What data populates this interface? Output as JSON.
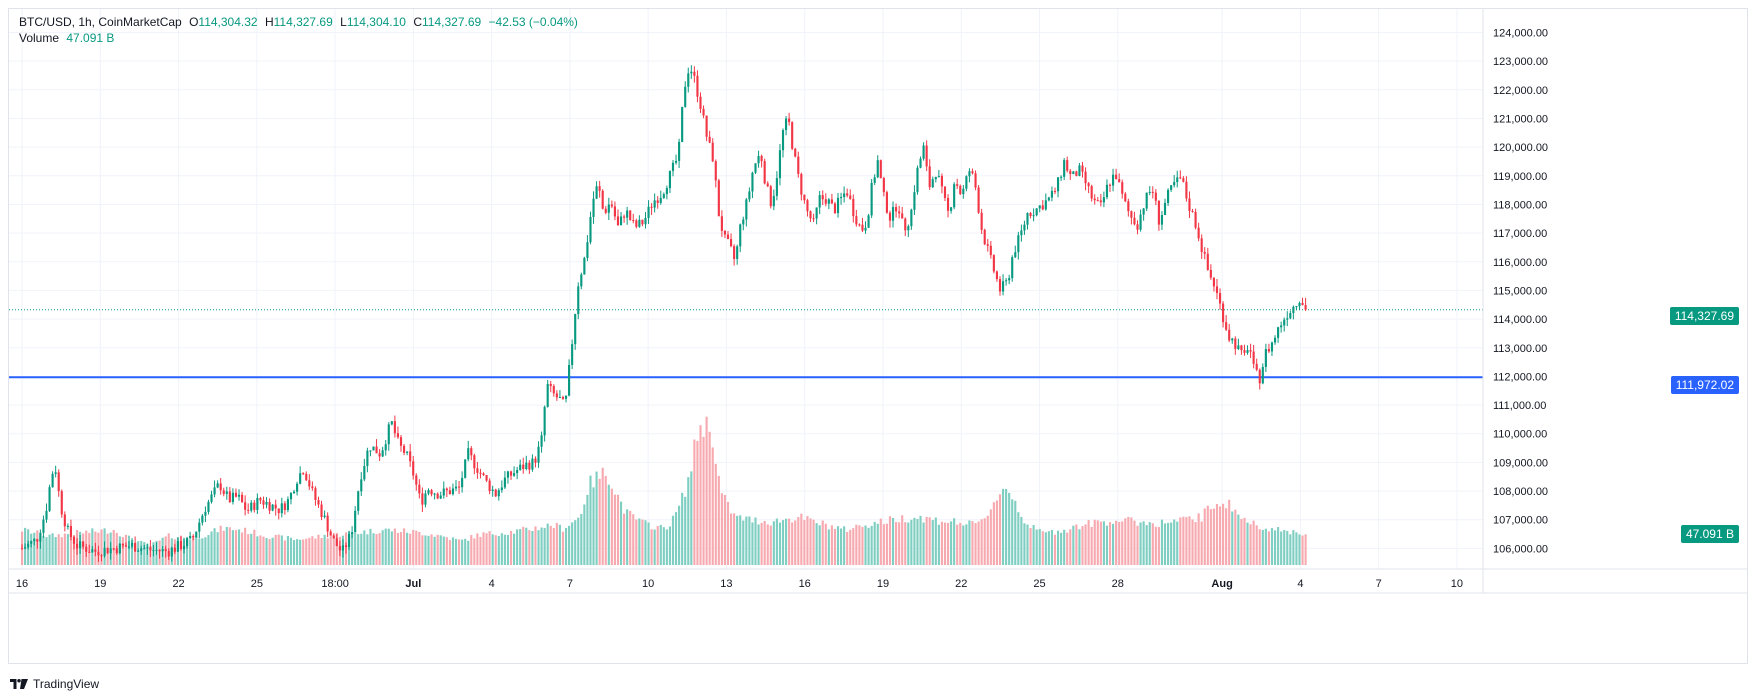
{
  "legend": {
    "symbol": "BTC/USD, 1h, CoinMarketCap",
    "open_label": "O",
    "open": "114,304.32",
    "high_label": "H",
    "high": "114,327.69",
    "low_label": "L",
    "low": "114,304.10",
    "close_label": "C",
    "close": "114,327.69",
    "change": "−42.53 (−0.04%)",
    "volume_label": "Volume",
    "volume_value": "47.091 B"
  },
  "price_tag": "114,327.69",
  "level_tag": "111,972.02",
  "volume_tag": "47.091 B",
  "branding": "TradingView",
  "colors": {
    "up": "#089981",
    "down": "#f23645",
    "up_volume": "#7fcec2",
    "down_volume": "#f7a9b0",
    "level_line": "#2962ff",
    "grid": "#f0f3fa",
    "axis_text": "#131722"
  },
  "chart_data": {
    "type": "candlestick",
    "symbol": "BTC/USD",
    "interval": "1h",
    "source": "CoinMarketCap",
    "y_axis": {
      "ticks": [
        "106,000.00",
        "107,000.00",
        "108,000.00",
        "109,000.00",
        "110,000.00",
        "111,000.00",
        "112,000.00",
        "113,000.00",
        "114,000.00",
        "115,000.00",
        "116,000.00",
        "117,000.00",
        "118,000.00",
        "119,000.00",
        "120,000.00",
        "121,000.00",
        "122,000.00",
        "123,000.00",
        "124,000.00"
      ],
      "min": 105700,
      "max": 124400
    },
    "x_axis": {
      "ticks": [
        "16",
        "19",
        "22",
        "25",
        "18:00",
        "Jul",
        "4",
        "7",
        "10",
        "13",
        "16",
        "19",
        "22",
        "25",
        "28",
        "Aug",
        "4",
        "7",
        "10"
      ],
      "bold_ticks": [
        "Jul",
        "Aug"
      ],
      "days_from_jun16": [
        0,
        3,
        6,
        9,
        12,
        15,
        18,
        21,
        24,
        27,
        30,
        33,
        36,
        39,
        42,
        46,
        49,
        52,
        55
      ],
      "range_days": [
        -0.5,
        56.0
      ]
    },
    "horizontal_level": 111972.02,
    "last_price": 114327.69,
    "price_path": [
      [
        0.0,
        106000
      ],
      [
        0.8,
        106300
      ],
      [
        1.3,
        107300
      ],
      [
        1.6,
        108500
      ],
      [
        1.8,
        108950
      ],
      [
        2.1,
        107500
      ],
      [
        2.5,
        106600
      ],
      [
        3.0,
        106100
      ],
      [
        4.0,
        105900
      ],
      [
        5.0,
        106000
      ],
      [
        6.0,
        106100
      ],
      [
        7.0,
        105950
      ],
      [
        8.0,
        105900
      ],
      [
        9.3,
        106300
      ],
      [
        10.0,
        107400
      ],
      [
        10.8,
        108250
      ],
      [
        11.3,
        107700
      ],
      [
        11.8,
        107800
      ],
      [
        12.3,
        107300
      ],
      [
        13.0,
        107700
      ],
      [
        14.1,
        107350
      ],
      [
        14.6,
        107700
      ],
      [
        15.0,
        108400
      ],
      [
        15.4,
        108800
      ],
      [
        15.9,
        107900
      ],
      [
        16.5,
        107100
      ],
      [
        17.0,
        106300
      ],
      [
        17.5,
        105850
      ],
      [
        18.0,
        106500
      ],
      [
        18.5,
        108500
      ],
      [
        19.0,
        109600
      ],
      [
        19.6,
        109300
      ],
      [
        20.2,
        110400
      ],
      [
        20.6,
        109600
      ],
      [
        21.0,
        109300
      ],
      [
        21.4,
        108600
      ],
      [
        21.8,
        107600
      ],
      [
        22.2,
        108100
      ],
      [
        22.8,
        107900
      ],
      [
        23.4,
        108000
      ],
      [
        23.9,
        108100
      ],
      [
        24.4,
        109300
      ],
      [
        24.9,
        108800
      ],
      [
        25.4,
        108300
      ],
      [
        25.9,
        107900
      ],
      [
        26.4,
        108400
      ],
      [
        27.0,
        108700
      ],
      [
        27.5,
        108900
      ],
      [
        28.0,
        109000
      ],
      [
        28.4,
        109700
      ],
      [
        28.7,
        111700
      ],
      [
        29.0,
        111400
      ],
      [
        29.4,
        111200
      ],
      [
        29.7,
        110900
      ],
      [
        30.1,
        113300
      ],
      [
        30.4,
        115200
      ],
      [
        30.8,
        116200
      ],
      [
        31.2,
        118100
      ],
      [
        31.5,
        118700
      ],
      [
        31.8,
        117700
      ],
      [
        32.2,
        118100
      ],
      [
        32.6,
        117200
      ],
      [
        33.0,
        117800
      ],
      [
        33.5,
        117200
      ],
      [
        34.0,
        117400
      ],
      [
        34.5,
        118100
      ],
      [
        35.0,
        118400
      ],
      [
        35.5,
        119100
      ],
      [
        35.9,
        119700
      ],
      [
        36.2,
        122000
      ],
      [
        36.5,
        122900
      ],
      [
        36.8,
        122300
      ],
      [
        37.1,
        121500
      ],
      [
        37.5,
        120200
      ],
      [
        37.8,
        119600
      ],
      [
        38.1,
        117700
      ],
      [
        38.4,
        116800
      ],
      [
        38.7,
        116500
      ],
      [
        39.0,
        116000
      ],
      [
        39.3,
        117300
      ],
      [
        39.7,
        118200
      ],
      [
        40.0,
        119300
      ],
      [
        40.4,
        119800
      ],
      [
        40.7,
        118600
      ],
      [
        41.0,
        118000
      ],
      [
        41.3,
        119100
      ],
      [
        41.6,
        120500
      ],
      [
        41.9,
        121000
      ],
      [
        42.2,
        119800
      ],
      [
        42.5,
        118800
      ],
      [
        42.9,
        117800
      ],
      [
        43.3,
        117300
      ],
      [
        43.6,
        118200
      ],
      [
        44.0,
        118200
      ],
      [
        44.4,
        117800
      ],
      [
        44.8,
        118200
      ],
      [
        45.1,
        118500
      ],
      [
        45.5,
        117700
      ],
      [
        45.9,
        117100
      ],
      [
        46.2,
        117400
      ],
      [
        46.5,
        118700
      ],
      [
        46.8,
        119500
      ],
      [
        47.1,
        118300
      ],
      [
        47.5,
        117500
      ],
      [
        47.9,
        118100
      ],
      [
        48.2,
        117100
      ],
      [
        48.6,
        117600
      ],
      [
        48.9,
        119000
      ],
      [
        49.3,
        120000
      ],
      [
        49.6,
        118600
      ],
      [
        50.0,
        119200
      ],
      [
        50.4,
        118200
      ],
      [
        50.7,
        117600
      ],
      [
        51.0,
        118900
      ],
      [
        51.4,
        118300
      ],
      [
        51.8,
        119200
      ],
      [
        52.1,
        118800
      ],
      [
        52.5,
        117100
      ],
      [
        52.9,
        116200
      ],
      [
        53.2,
        115600
      ],
      [
        53.5,
        115000
      ],
      [
        53.9,
        115300
      ],
      [
        54.2,
        116300
      ],
      [
        54.6,
        116900
      ],
      [
        55.0,
        117700
      ],
      [
        55.4,
        117800
      ],
      [
        55.8,
        118000
      ],
      [
        56.2,
        118200
      ],
      [
        56.6,
        118600
      ],
      [
        57.0,
        119500
      ],
      [
        57.4,
        118900
      ],
      [
        57.8,
        119200
      ],
      [
        58.2,
        118700
      ],
      [
        58.6,
        118100
      ],
      [
        59.0,
        117900
      ],
      [
        59.4,
        118700
      ],
      [
        59.8,
        119100
      ],
      [
        60.2,
        118200
      ],
      [
        60.6,
        117600
      ],
      [
        61.0,
        117300
      ],
      [
        61.4,
        118100
      ],
      [
        61.8,
        118600
      ],
      [
        62.2,
        117400
      ],
      [
        62.6,
        118200
      ],
      [
        63.0,
        118700
      ],
      [
        63.4,
        118900
      ],
      [
        63.8,
        118000
      ],
      [
        64.2,
        117300
      ],
      [
        64.6,
        116300
      ],
      [
        64.9,
        115600
      ],
      [
        65.2,
        115200
      ],
      [
        65.6,
        114300
      ],
      [
        66.0,
        113400
      ],
      [
        66.4,
        113100
      ],
      [
        66.8,
        112600
      ],
      [
        67.1,
        113200
      ],
      [
        67.4,
        112100
      ],
      [
        67.7,
        111950
      ],
      [
        68.0,
        112800
      ],
      [
        68.4,
        113200
      ],
      [
        68.8,
        113800
      ],
      [
        69.2,
        114200
      ],
      [
        69.6,
        114500
      ],
      [
        69.9,
        114800
      ],
      [
        70.2,
        114327.69
      ]
    ],
    "volume_path": [
      [
        0.0,
        0.22
      ],
      [
        1.5,
        0.18
      ],
      [
        3.0,
        0.2
      ],
      [
        5.0,
        0.22
      ],
      [
        6.0,
        0.16
      ],
      [
        7.0,
        0.12
      ],
      [
        8.0,
        0.18
      ],
      [
        9.5,
        0.17
      ],
      [
        11.0,
        0.23
      ],
      [
        12.0,
        0.22
      ],
      [
        13.5,
        0.18
      ],
      [
        15.0,
        0.16
      ],
      [
        16.5,
        0.18
      ],
      [
        18.0,
        0.2
      ],
      [
        19.0,
        0.21
      ],
      [
        20.0,
        0.22
      ],
      [
        21.0,
        0.21
      ],
      [
        22.0,
        0.2
      ],
      [
        23.0,
        0.18
      ],
      [
        24.0,
        0.15
      ],
      [
        25.0,
        0.19
      ],
      [
        26.0,
        0.2
      ],
      [
        27.0,
        0.21
      ],
      [
        28.0,
        0.23
      ],
      [
        29.0,
        0.25
      ],
      [
        29.6,
        0.23
      ],
      [
        30.0,
        0.26
      ],
      [
        30.5,
        0.3
      ],
      [
        31.0,
        0.5
      ],
      [
        31.5,
        0.55
      ],
      [
        32.0,
        0.58
      ],
      [
        32.5,
        0.45
      ],
      [
        33.0,
        0.33
      ],
      [
        34.0,
        0.26
      ],
      [
        35.0,
        0.23
      ],
      [
        35.5,
        0.26
      ],
      [
        36.0,
        0.38
      ],
      [
        36.5,
        0.55
      ],
      [
        37.0,
        0.86
      ],
      [
        37.4,
        0.88
      ],
      [
        37.8,
        0.8
      ],
      [
        38.2,
        0.46
      ],
      [
        38.6,
        0.37
      ],
      [
        39.0,
        0.3
      ],
      [
        40.0,
        0.28
      ],
      [
        41.0,
        0.27
      ],
      [
        42.0,
        0.29
      ],
      [
        42.5,
        0.3
      ],
      [
        43.0,
        0.28
      ],
      [
        44.0,
        0.25
      ],
      [
        45.0,
        0.22
      ],
      [
        46.0,
        0.25
      ],
      [
        47.0,
        0.27
      ],
      [
        48.0,
        0.29
      ],
      [
        49.0,
        0.3
      ],
      [
        50.0,
        0.28
      ],
      [
        51.0,
        0.27
      ],
      [
        52.0,
        0.25
      ],
      [
        52.5,
        0.27
      ],
      [
        53.0,
        0.36
      ],
      [
        53.5,
        0.46
      ],
      [
        53.9,
        0.48
      ],
      [
        54.3,
        0.4
      ],
      [
        54.8,
        0.28
      ],
      [
        55.4,
        0.22
      ],
      [
        56.0,
        0.2
      ],
      [
        57.0,
        0.22
      ],
      [
        58.0,
        0.25
      ],
      [
        59.0,
        0.27
      ],
      [
        60.0,
        0.28
      ],
      [
        61.0,
        0.27
      ],
      [
        62.0,
        0.26
      ],
      [
        63.0,
        0.27
      ],
      [
        64.0,
        0.29
      ],
      [
        64.5,
        0.3
      ],
      [
        65.0,
        0.36
      ],
      [
        65.5,
        0.4
      ],
      [
        66.0,
        0.38
      ],
      [
        66.5,
        0.32
      ],
      [
        67.0,
        0.27
      ],
      [
        67.5,
        0.25
      ],
      [
        68.0,
        0.24
      ],
      [
        68.5,
        0.22
      ],
      [
        69.0,
        0.21
      ],
      [
        69.5,
        0.21
      ],
      [
        70.0,
        0.2
      ],
      [
        70.2,
        0.2
      ]
    ]
  }
}
